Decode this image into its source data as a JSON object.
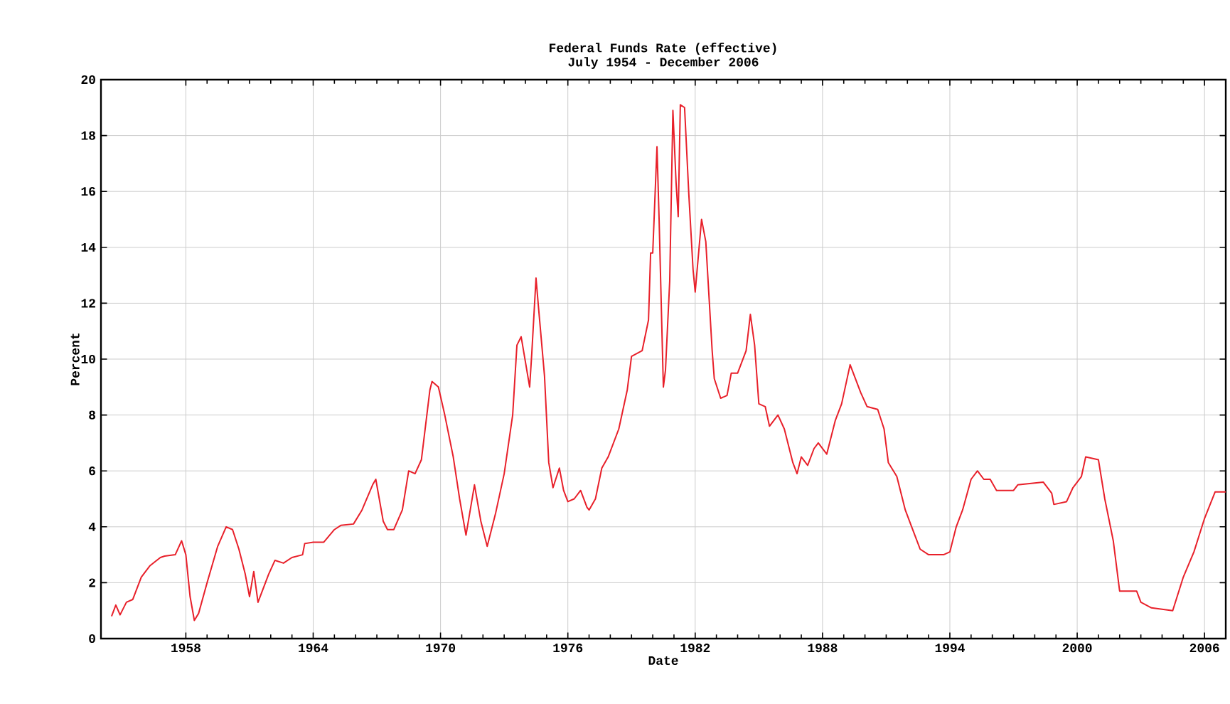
{
  "chart_data": {
    "type": "line",
    "title": "Federal Funds Rate (effective)",
    "subtitle": "July 1954 - December 2006",
    "xlabel": "Date",
    "ylabel": "Percent",
    "color": "#e8202a",
    "grid": true,
    "line_style": "solid",
    "xlim": [
      1954,
      2007
    ],
    "xticks": [
      1958,
      1964,
      1970,
      1976,
      1982,
      1988,
      1994,
      2000,
      2006
    ],
    "ylim": [
      0,
      20
    ],
    "yticks": [
      0,
      2,
      4,
      6,
      8,
      10,
      12,
      14,
      16,
      18,
      20
    ],
    "x": [
      1954.5,
      1954.7,
      1954.9,
      1955.2,
      1955.5,
      1955.9,
      1956.3,
      1956.8,
      1957.0,
      1957.5,
      1957.8,
      1958.0,
      1958.2,
      1958.4,
      1958.6,
      1959.0,
      1959.5,
      1959.9,
      1960.2,
      1960.5,
      1960.8,
      1961.0,
      1961.2,
      1961.4,
      1961.6,
      1961.9,
      1962.2,
      1962.6,
      1963.0,
      1963.5,
      1963.6,
      1964.0,
      1964.5,
      1965.0,
      1965.3,
      1965.9,
      1966.3,
      1966.8,
      1966.95,
      1967.3,
      1967.5,
      1967.8,
      1968.2,
      1968.5,
      1968.8,
      1969.1,
      1969.5,
      1969.6,
      1969.9,
      1970.2,
      1970.6,
      1970.9,
      1971.2,
      1971.6,
      1971.9,
      1972.2,
      1972.6,
      1973.0,
      1973.4,
      1973.6,
      1973.8,
      1974.0,
      1974.2,
      1974.3,
      1974.5,
      1974.6,
      1974.9,
      1975.1,
      1975.3,
      1975.6,
      1975.8,
      1976.0,
      1976.3,
      1976.6,
      1976.9,
      1977.0,
      1977.3,
      1977.6,
      1977.9,
      1978.4,
      1978.8,
      1979.0,
      1979.5,
      1979.8,
      1979.9,
      1980.0,
      1980.2,
      1980.3,
      1980.5,
      1980.6,
      1980.8,
      1980.95,
      1981.1,
      1981.2,
      1981.3,
      1981.5,
      1981.7,
      1981.9,
      1982.0,
      1982.3,
      1982.5,
      1982.8,
      1982.9,
      1983.2,
      1983.5,
      1983.7,
      1984.0,
      1984.4,
      1984.6,
      1984.8,
      1985.0,
      1985.3,
      1985.5,
      1985.9,
      1986.2,
      1986.6,
      1986.8,
      1987.0,
      1987.3,
      1987.6,
      1987.8,
      1988.2,
      1988.6,
      1988.9,
      1989.3,
      1989.8,
      1990.1,
      1990.6,
      1990.9,
      1991.1,
      1991.5,
      1991.9,
      1992.2,
      1992.6,
      1993.0,
      1993.7,
      1994.0,
      1994.3,
      1994.6,
      1995.0,
      1995.3,
      1995.6,
      1995.9,
      1996.2,
      1997.0,
      1997.2,
      1998.4,
      1998.8,
      1998.9,
      1999.5,
      1999.8,
      2000.2,
      2000.4,
      2001.0,
      2001.3,
      2001.7,
      2002.0,
      2002.8,
      2003.0,
      2003.5,
      2004.5,
      2005.0,
      2005.5,
      2006.0,
      2006.5,
      2007.0
    ],
    "values": [
      0.8,
      1.2,
      0.85,
      1.3,
      1.4,
      2.2,
      2.6,
      2.9,
      2.95,
      3.0,
      3.5,
      3.0,
      1.5,
      0.65,
      0.9,
      2.0,
      3.3,
      4.0,
      3.9,
      3.2,
      2.3,
      1.5,
      2.4,
      1.3,
      1.7,
      2.3,
      2.8,
      2.7,
      2.9,
      3.0,
      3.4,
      3.45,
      3.45,
      3.9,
      4.05,
      4.1,
      4.6,
      5.5,
      5.7,
      4.2,
      3.9,
      3.9,
      4.6,
      6.0,
      5.9,
      6.4,
      8.9,
      9.2,
      9.0,
      8.0,
      6.5,
      5.0,
      3.7,
      5.5,
      4.2,
      3.3,
      4.5,
      5.9,
      8.0,
      10.5,
      10.8,
      9.9,
      9.0,
      10.2,
      12.9,
      12.0,
      9.4,
      6.3,
      5.4,
      6.1,
      5.3,
      4.9,
      5.0,
      5.3,
      4.7,
      4.6,
      5.0,
      6.1,
      6.5,
      7.5,
      8.9,
      10.1,
      10.3,
      11.4,
      13.8,
      13.8,
      17.6,
      15.0,
      9.0,
      9.6,
      12.8,
      18.9,
      16.3,
      15.1,
      19.1,
      19.0,
      15.9,
      13.2,
      12.4,
      15.0,
      14.2,
      10.3,
      9.3,
      8.6,
      8.7,
      9.5,
      9.5,
      10.3,
      11.6,
      10.5,
      8.4,
      8.3,
      7.6,
      8.0,
      7.5,
      6.3,
      5.9,
      6.5,
      6.2,
      6.8,
      7.0,
      6.6,
      7.8,
      8.4,
      9.8,
      8.8,
      8.3,
      8.2,
      7.5,
      6.3,
      5.8,
      4.6,
      4.0,
      3.2,
      3.0,
      3.0,
      3.1,
      4.0,
      4.6,
      5.7,
      6.0,
      5.7,
      5.7,
      5.3,
      5.3,
      5.5,
      5.6,
      5.2,
      4.8,
      4.9,
      5.4,
      5.8,
      6.5,
      6.4,
      5.0,
      3.5,
      1.7,
      1.7,
      1.3,
      1.1,
      1.0,
      2.2,
      3.1,
      4.3,
      5.25,
      5.25
    ]
  }
}
